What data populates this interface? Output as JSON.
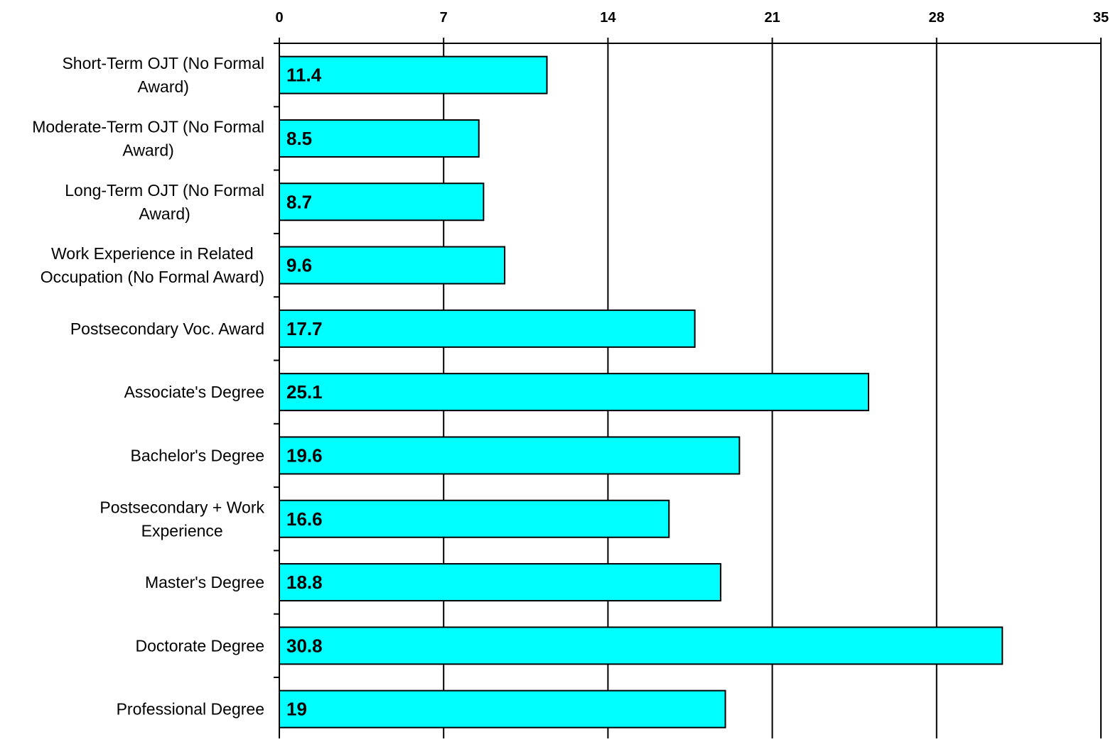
{
  "chart_data": {
    "type": "bar",
    "orientation": "horizontal",
    "title": "",
    "xlabel": "",
    "ylabel": "",
    "categories": [
      [
        "Short-Term OJT (No Formal",
        "Award)"
      ],
      [
        "Moderate-Term OJT (No Formal",
        "Award)"
      ],
      [
        "Long-Term OJT (No Formal",
        "Award)"
      ],
      [
        "Work Experience in Related",
        "Occupation (No Formal Award)"
      ],
      [
        "Postsecondary Voc. Award"
      ],
      [
        "Associate's Degree"
      ],
      [
        "Bachelor's Degree"
      ],
      [
        "Postsecondary + Work",
        "Experience"
      ],
      [
        "Master's Degree"
      ],
      [
        "Doctorate Degree"
      ],
      [
        "Professional Degree"
      ]
    ],
    "values": [
      11.4,
      8.5,
      8.7,
      9.6,
      17.7,
      25.1,
      19.6,
      16.6,
      18.8,
      30.8,
      19
    ],
    "value_labels": [
      "11.4",
      "8.5",
      "8.7",
      "9.6",
      "17.7",
      "25.1",
      "19.6",
      "16.6",
      "18.8",
      "30.8",
      "19"
    ],
    "xlim": [
      0,
      35
    ],
    "x_ticks": [
      0,
      7,
      14,
      21,
      28,
      35
    ],
    "x_tick_labels": [
      "0",
      "7",
      "14",
      "21",
      "28",
      "35"
    ],
    "x_axis_position": "top",
    "grid": true,
    "legend": "none",
    "colors": {
      "bar_fill": "#00FFFF",
      "bar_stroke": "#000000",
      "gridline": "#000000",
      "background": "#FFFFFF"
    }
  }
}
